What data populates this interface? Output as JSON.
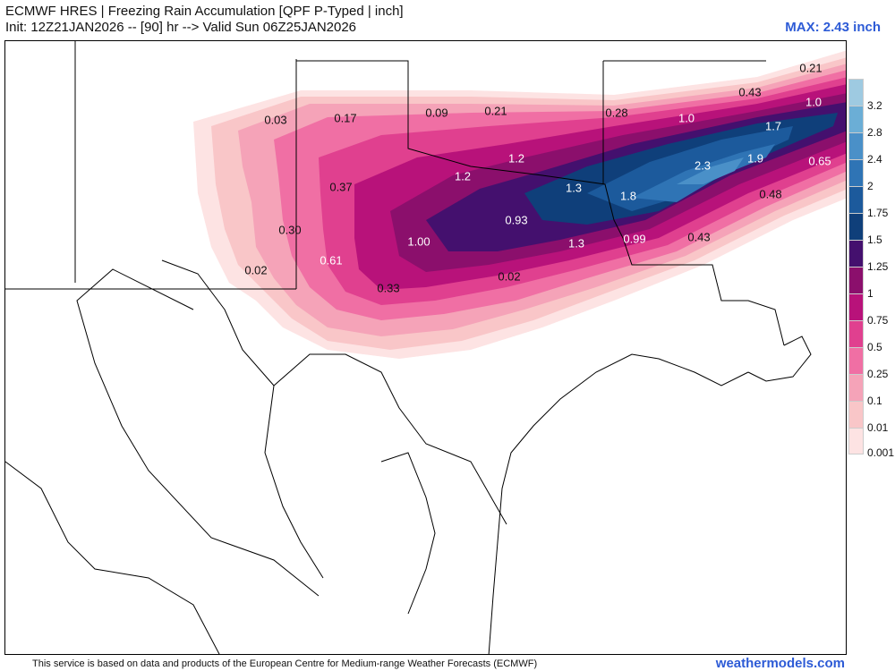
{
  "header": {
    "title_line1": "ECMWF HRES | Freezing Rain Accumulation [QPF P-Typed | inch]",
    "title_line2": "Init: 12Z21JAN2026 -- [90] hr --> Valid Sun 06Z25JAN2026",
    "max_label": "MAX: 2.43 inch"
  },
  "legend": {
    "levels": [
      "3.2",
      "2.8",
      "2.4",
      "2",
      "1.75",
      "1.5",
      "1.25",
      "1",
      "0.75",
      "0.5",
      "0.25",
      "0.1",
      "0.01",
      "0.001"
    ],
    "colors": [
      "#9ecae1",
      "#6baed6",
      "#4a90c8",
      "#2f74b5",
      "#1c5a9c",
      "#0f3f7a",
      "#44106e",
      "#8b0f6c",
      "#b8127a",
      "#e0408f",
      "#f06fa4",
      "#f5a3b8",
      "#f9c6c8",
      "#fde3e3"
    ]
  },
  "map_values": [
    {
      "label": "0.21",
      "light": false
    },
    {
      "label": "0.43",
      "light": false
    },
    {
      "label": "1.0",
      "light": true
    },
    {
      "label": "0.03",
      "light": false
    },
    {
      "label": "0.17",
      "light": false
    },
    {
      "label": "0.09",
      "light": false
    },
    {
      "label": "0.21",
      "light": false
    },
    {
      "label": "0.28",
      "light": false
    },
    {
      "label": "1.0",
      "light": true
    },
    {
      "label": "1.7",
      "light": true
    },
    {
      "label": "1.2",
      "light": true
    },
    {
      "label": "2.3",
      "light": true
    },
    {
      "label": "1.9",
      "light": true
    },
    {
      "label": "0.65",
      "light": true
    },
    {
      "label": "1.2",
      "light": true
    },
    {
      "label": "0.37",
      "light": false
    },
    {
      "label": "1.3",
      "light": true
    },
    {
      "label": "1.8",
      "light": true
    },
    {
      "label": "0.48",
      "light": false
    },
    {
      "label": "0.93",
      "light": true
    },
    {
      "label": "0.30",
      "light": false
    },
    {
      "label": "1.00",
      "light": true
    },
    {
      "label": "1.3",
      "light": true
    },
    {
      "label": "0.99",
      "light": true
    },
    {
      "label": "0.43",
      "light": false
    },
    {
      "label": "0.61",
      "light": true
    },
    {
      "label": "0.02",
      "light": false
    },
    {
      "label": "0.02",
      "light": false
    },
    {
      "label": "0.33",
      "light": false
    }
  ],
  "footer": {
    "disclaimer": "This service is based on data and products of the European Centre for Medium-range Weather Forecasts (ECMWF)",
    "credit": "weathermodels.com"
  }
}
